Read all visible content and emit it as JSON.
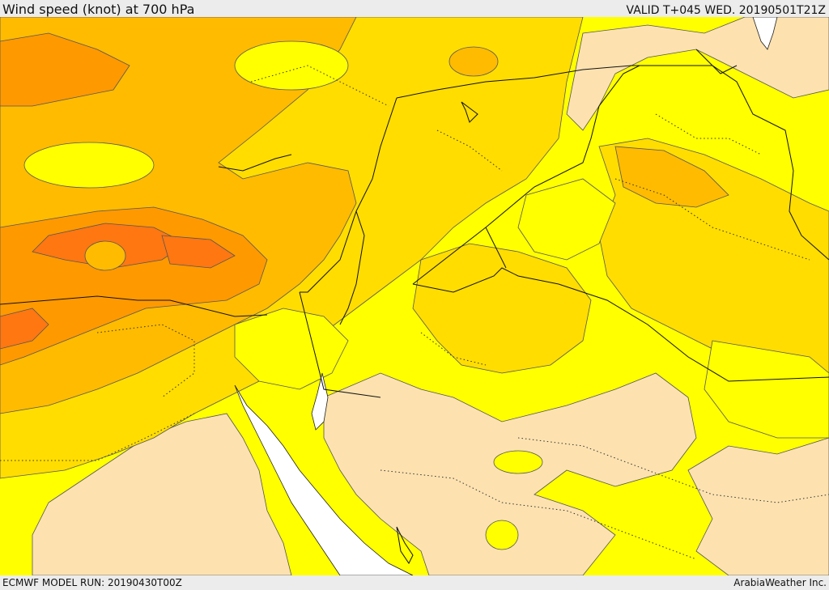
{
  "header": {
    "title": "Wind speed (knot) at 700 hPa",
    "valid_time": "VALID T+045 WED. 20190501T21Z"
  },
  "footer": {
    "model_run": "ECMWF MODEL RUN: 20190430T00Z",
    "credit": "ArabiaWeather Inc."
  },
  "map": {
    "colors": {
      "lightest": "#fde2b0",
      "low": "#ffff00",
      "medium": "#ffdd00",
      "medium_high": "#ffbb00",
      "high": "#ff9900",
      "very_high": "#ff7711",
      "sea": "#ffffff",
      "contour": "#555555",
      "border": "#111111"
    },
    "legend_icons": [
      "contour-line",
      "dotted-border"
    ]
  }
}
